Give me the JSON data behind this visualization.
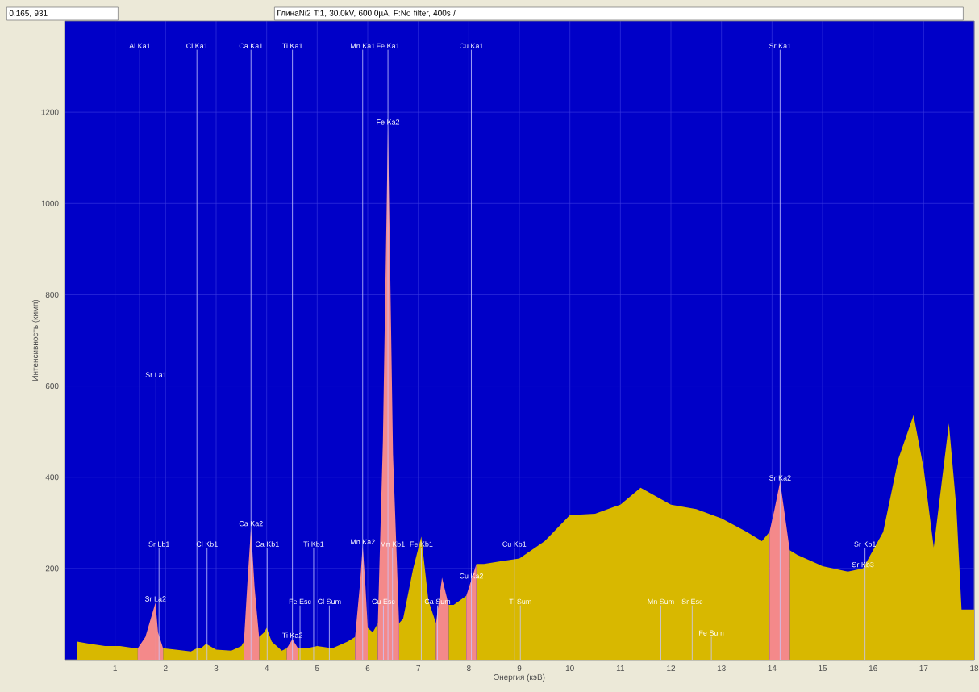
{
  "chart_data": {
    "type": "area",
    "title": "ГлинаNi2 T:1, 30.0kV, 600.0µA, F:No filter, 400s /",
    "xlabel": "Энергия (кэВ)",
    "ylabel": "Интенсивность (кимп)",
    "xlim": [
      0,
      18
    ],
    "ylim": [
      0,
      1400
    ],
    "xticks": [
      1,
      2,
      3,
      4,
      5,
      6,
      7,
      8,
      9,
      10,
      11,
      12,
      13,
      14,
      15,
      16,
      17,
      18
    ],
    "yticks": [
      200,
      400,
      600,
      800,
      1000,
      1200
    ],
    "grid": true,
    "series": [
      {
        "color": "#d8b800",
        "x": [
          0.25,
          0.5,
          0.8,
          1.1,
          1.4,
          1.45,
          1.7,
          1.95,
          2.2,
          2.5,
          2.62,
          2.7,
          2.8,
          3.0,
          3.3,
          3.5,
          3.55,
          3.7,
          3.85,
          3.95,
          4.0,
          4.1,
          4.3,
          4.4,
          4.5,
          4.62,
          4.8,
          5.0,
          5.3,
          5.6,
          5.75,
          5.9,
          6.0,
          6.1,
          6.2,
          6.4,
          6.62,
          6.7,
          6.9,
          7.06,
          7.2,
          7.35,
          7.47,
          7.6,
          7.7,
          7.95,
          8.05,
          8.15,
          8.3,
          8.6,
          9.0,
          9.5,
          10.0,
          10.5,
          11.0,
          11.4,
          12.0,
          12.5,
          13.0,
          13.5,
          13.8,
          13.95,
          14.16,
          14.35,
          14.5,
          15.0,
          15.5,
          15.8,
          16.2,
          16.5,
          16.8,
          17.0,
          17.2,
          17.5,
          17.65,
          17.75,
          18.0
        ],
        "values": [
          40,
          35,
          30,
          30,
          25,
          25,
          null,
          25,
          22,
          18,
          25,
          25,
          35,
          22,
          20,
          30,
          40,
          null,
          50,
          60,
          70,
          40,
          20,
          25,
          null,
          25,
          25,
          30,
          25,
          40,
          50,
          null,
          70,
          60,
          80,
          null,
          80,
          90,
          200,
          270,
          130,
          80,
          null,
          120,
          120,
          140,
          null,
          210,
          210,
          215,
          222,
          260,
          317,
          320,
          340,
          377,
          340,
          330,
          310,
          280,
          260,
          280,
          null,
          240,
          230,
          205,
          193,
          200,
          280,
          440,
          536,
          420,
          246,
          518,
          330,
          110,
          110
        ]
      },
      {
        "color": "#f4898a",
        "x": [
          1.45,
          1.6,
          1.8,
          1.85,
          1.95,
          3.0,
          3.55,
          3.62,
          3.69,
          3.76,
          3.85,
          4.2,
          4.4,
          4.51,
          4.62,
          5.2,
          5.75,
          5.85,
          5.9,
          5.95,
          6.0,
          6.1,
          6.2,
          6.3,
          6.4,
          6.5,
          6.62,
          7.0,
          7.35,
          7.47,
          7.6,
          7.8,
          7.95,
          8.05,
          8.15,
          11.0,
          13.95,
          14.05,
          14.16,
          14.25,
          14.35
        ],
        "values": [
          25,
          50,
          125,
          60,
          25,
          null,
          40,
          170,
          290,
          160,
          50,
          null,
          25,
          45,
          25,
          null,
          50,
          170,
          250,
          170,
          70,
          null,
          80,
          480,
          1170,
          450,
          80,
          null,
          80,
          180,
          120,
          null,
          140,
          175,
          210,
          null,
          280,
          330,
          390,
          320,
          240
        ]
      }
    ],
    "annotations": [
      "0.165, 931",
      {
        "text": "Ca Ka2",
        "x": 3.69,
        "y": 290
      },
      {
        "text": "Ti Ka2",
        "x": 4.51,
        "y": 45
      },
      {
        "text": "Mn Ka2",
        "x": 5.9,
        "y": 250
      },
      {
        "text": "Fe Ka2",
        "x": 6.4,
        "y": 1170
      },
      {
        "text": "Cu Ka2",
        "x": 8.05,
        "y": 175
      },
      {
        "text": "Sr Ka2",
        "x": 14.16,
        "y": 390
      },
      {
        "text": "Sr La2",
        "x": 1.8,
        "y": 125
      },
      {
        "text": "Sr Kb3",
        "x": 15.8,
        "y": 200
      }
    ],
    "ref_lines": [
      {
        "axis": "x",
        "value": 1.49,
        "label": "Al Ka1"
      },
      {
        "axis": "x",
        "value": 2.62,
        "label": "Cl Ka1"
      },
      {
        "axis": "x",
        "value": 3.69,
        "label": "Ca Ka1"
      },
      {
        "axis": "x",
        "value": 4.51,
        "label": "Ti Ka1"
      },
      {
        "axis": "x",
        "value": 5.9,
        "label": "Mn Ka1"
      },
      {
        "axis": "x",
        "value": 6.4,
        "label": "Fe Ka1"
      },
      {
        "axis": "x",
        "value": 8.05,
        "label": "Cu Ka1"
      },
      {
        "axis": "x",
        "value": 14.16,
        "label": "Sr Ka1"
      },
      {
        "axis": "x",
        "value": 1.81,
        "label": "Sr La1"
      },
      {
        "axis": "x",
        "value": 1.87,
        "label": "Sr Lb1"
      },
      {
        "axis": "x",
        "value": 4.93,
        "label": "Ti Kb1"
      },
      {
        "axis": "x",
        "value": 6.49,
        "label": "Mn Kb1"
      },
      {
        "axis": "x",
        "value": 7.06,
        "label": "Fe Kb1"
      },
      {
        "axis": "x",
        "value": 8.9,
        "label": "Cu Kb1"
      },
      {
        "axis": "x",
        "value": 15.84,
        "label": "Sr Kb1"
      },
      {
        "axis": "x",
        "value": 4.01,
        "label": "Ca Kb1"
      },
      {
        "axis": "x",
        "value": 2.82,
        "label": "Cl Kb1"
      },
      {
        "axis": "x",
        "value": 4.66,
        "label": "Fe Esc"
      },
      {
        "axis": "x",
        "value": 5.24,
        "label": "Cl Sum"
      },
      {
        "axis": "x",
        "value": 6.31,
        "label": "Cu Esc"
      },
      {
        "axis": "x",
        "value": 7.38,
        "label": "Ca Sum"
      },
      {
        "axis": "x",
        "value": 9.02,
        "label": "Ti Sum"
      },
      {
        "axis": "x",
        "value": 11.8,
        "label": "Mn Sum"
      },
      {
        "axis": "x",
        "value": 12.42,
        "label": "Sr Esc"
      },
      {
        "axis": "x",
        "value": 12.8,
        "label": "Fe Sum"
      }
    ]
  }
}
